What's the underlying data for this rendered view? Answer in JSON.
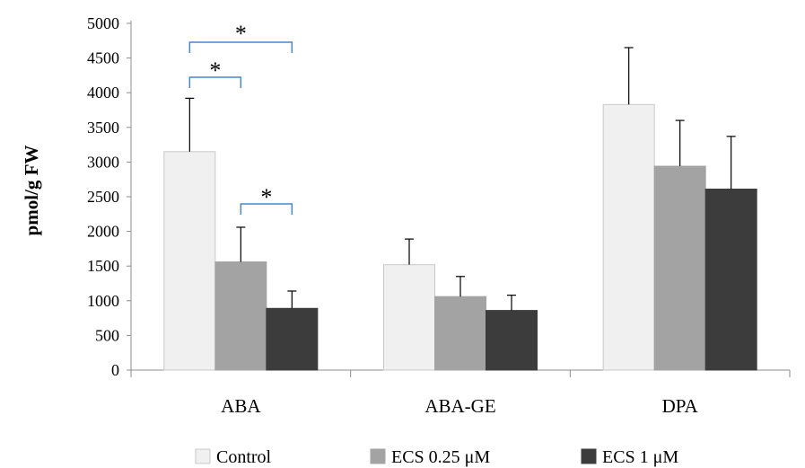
{
  "chart_data": {
    "type": "bar",
    "ylabel": "pmol/g FW",
    "xlabel": "",
    "ylim": [
      0,
      5000
    ],
    "yticks": [
      0,
      500,
      1000,
      1500,
      2000,
      2500,
      3000,
      3500,
      4000,
      4500,
      5000
    ],
    "categories": [
      "ABA",
      "ABA-GE",
      "DPA"
    ],
    "series": [
      {
        "name": "Control",
        "color": "#f0f0f0",
        "values": [
          3150,
          1520,
          3830
        ],
        "errors": [
          770,
          370,
          820
        ]
      },
      {
        "name": "ECS 0.25 μM",
        "color": "#a3a3a3",
        "values": [
          1560,
          1060,
          2940
        ],
        "errors": [
          500,
          290,
          660
        ]
      },
      {
        "name": "ECS 1 μM",
        "color": "#3c3c3c",
        "values": [
          890,
          860,
          2610
        ],
        "errors": [
          250,
          220,
          760
        ]
      }
    ],
    "legend_position": "bottom",
    "grid": false,
    "significance": [
      {
        "category": "ABA",
        "from_series": 0,
        "to_series": 2,
        "label": "*"
      },
      {
        "category": "ABA",
        "from_series": 0,
        "to_series": 1,
        "label": "*"
      },
      {
        "category": "ABA",
        "from_series": 1,
        "to_series": 2,
        "label": "*"
      }
    ],
    "bracket_color": "#4a86c8"
  }
}
